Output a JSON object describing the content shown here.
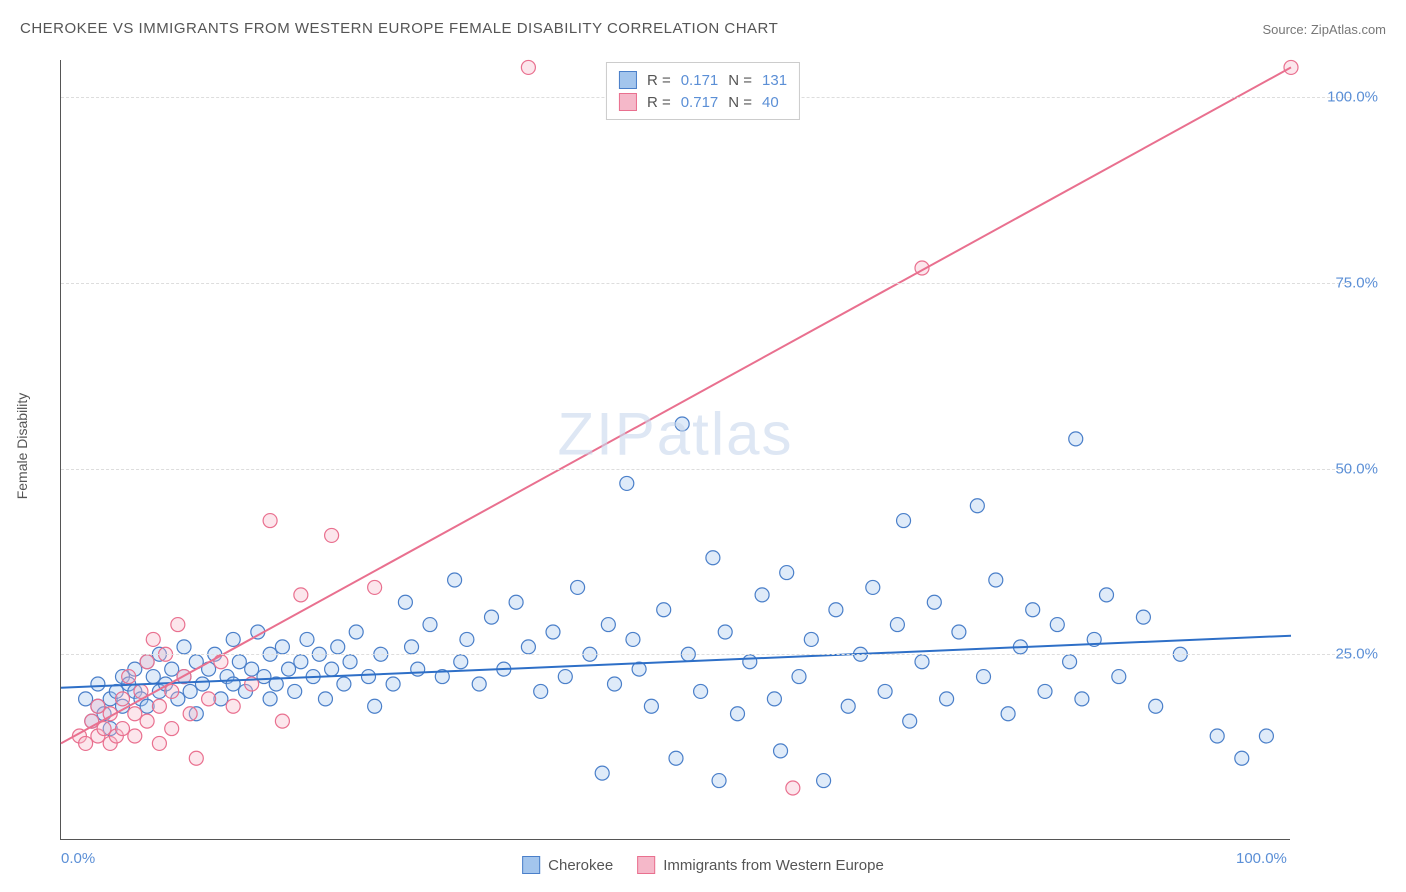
{
  "title": "CHEROKEE VS IMMIGRANTS FROM WESTERN EUROPE FEMALE DISABILITY CORRELATION CHART",
  "source": "Source: ZipAtlas.com",
  "y_axis_label": "Female Disability",
  "watermark": "ZIPatlas",
  "chart": {
    "type": "scatter",
    "background_color": "#ffffff",
    "grid_color": "#dddddd",
    "grid_dash": "4,4",
    "axis_color": "#555555",
    "xlim": [
      0,
      100
    ],
    "ylim": [
      0,
      105
    ],
    "x_ticks": [
      0,
      100
    ],
    "x_tick_labels": [
      "0.0%",
      "100.0%"
    ],
    "y_ticks": [
      25,
      50,
      75,
      100
    ],
    "y_tick_labels": [
      "25.0%",
      "50.0%",
      "75.0%",
      "100.0%"
    ],
    "tick_label_color": "#5b8fd6",
    "tick_label_fontsize": 15,
    "marker_radius": 7,
    "marker_fill_opacity": 0.35,
    "marker_stroke_width": 1.2,
    "line_width": 2
  },
  "series": [
    {
      "name": "Cherokee",
      "fill_color": "#a3c5ed",
      "stroke_color": "#4a7fc9",
      "line_color": "#2e6fc7",
      "swatch_fill": "#a3c5ed",
      "swatch_border": "#4a7fc9",
      "r": "0.171",
      "n": "131",
      "trend": {
        "x1": 0,
        "y1": 20.5,
        "x2": 100,
        "y2": 27.5
      },
      "points": [
        [
          2,
          19
        ],
        [
          2.5,
          16
        ],
        [
          3,
          18
        ],
        [
          3,
          21
        ],
        [
          3.5,
          17
        ],
        [
          4,
          19
        ],
        [
          4,
          15
        ],
        [
          4.5,
          20
        ],
        [
          5,
          22
        ],
        [
          5,
          18
        ],
        [
          5.5,
          21
        ],
        [
          6,
          20
        ],
        [
          6,
          23
        ],
        [
          6.5,
          19
        ],
        [
          7,
          24
        ],
        [
          7,
          18
        ],
        [
          7.5,
          22
        ],
        [
          8,
          20
        ],
        [
          8,
          25
        ],
        [
          8.5,
          21
        ],
        [
          9,
          23
        ],
        [
          9.5,
          19
        ],
        [
          10,
          26
        ],
        [
          10,
          22
        ],
        [
          10.5,
          20
        ],
        [
          11,
          24
        ],
        [
          11,
          17
        ],
        [
          11.5,
          21
        ],
        [
          12,
          23
        ],
        [
          12.5,
          25
        ],
        [
          13,
          19
        ],
        [
          13.5,
          22
        ],
        [
          14,
          27
        ],
        [
          14,
          21
        ],
        [
          14.5,
          24
        ],
        [
          15,
          20
        ],
        [
          15.5,
          23
        ],
        [
          16,
          28
        ],
        [
          16.5,
          22
        ],
        [
          17,
          25
        ],
        [
          17,
          19
        ],
        [
          17.5,
          21
        ],
        [
          18,
          26
        ],
        [
          18.5,
          23
        ],
        [
          19,
          20
        ],
        [
          19.5,
          24
        ],
        [
          20,
          27
        ],
        [
          20.5,
          22
        ],
        [
          21,
          25
        ],
        [
          21.5,
          19
        ],
        [
          22,
          23
        ],
        [
          22.5,
          26
        ],
        [
          23,
          21
        ],
        [
          23.5,
          24
        ],
        [
          24,
          28
        ],
        [
          25,
          22
        ],
        [
          25.5,
          18
        ],
        [
          26,
          25
        ],
        [
          27,
          21
        ],
        [
          28,
          32
        ],
        [
          28.5,
          26
        ],
        [
          29,
          23
        ],
        [
          30,
          29
        ],
        [
          31,
          22
        ],
        [
          32,
          35
        ],
        [
          32.5,
          24
        ],
        [
          33,
          27
        ],
        [
          34,
          21
        ],
        [
          35,
          30
        ],
        [
          36,
          23
        ],
        [
          37,
          32
        ],
        [
          38,
          26
        ],
        [
          39,
          20
        ],
        [
          40,
          28
        ],
        [
          41,
          22
        ],
        [
          42,
          34
        ],
        [
          43,
          25
        ],
        [
          44,
          9
        ],
        [
          44.5,
          29
        ],
        [
          45,
          21
        ],
        [
          46,
          48
        ],
        [
          46.5,
          27
        ],
        [
          47,
          23
        ],
        [
          48,
          18
        ],
        [
          49,
          31
        ],
        [
          50,
          11
        ],
        [
          50.5,
          56
        ],
        [
          51,
          25
        ],
        [
          52,
          20
        ],
        [
          53,
          38
        ],
        [
          53.5,
          8
        ],
        [
          54,
          28
        ],
        [
          55,
          17
        ],
        [
          56,
          24
        ],
        [
          57,
          33
        ],
        [
          58,
          19
        ],
        [
          58.5,
          12
        ],
        [
          59,
          36
        ],
        [
          60,
          22
        ],
        [
          61,
          27
        ],
        [
          62,
          8
        ],
        [
          63,
          31
        ],
        [
          64,
          18
        ],
        [
          65,
          25
        ],
        [
          66,
          34
        ],
        [
          67,
          20
        ],
        [
          68,
          29
        ],
        [
          68.5,
          43
        ],
        [
          69,
          16
        ],
        [
          70,
          24
        ],
        [
          71,
          32
        ],
        [
          72,
          19
        ],
        [
          73,
          28
        ],
        [
          74.5,
          45
        ],
        [
          75,
          22
        ],
        [
          76,
          35
        ],
        [
          77,
          17
        ],
        [
          78,
          26
        ],
        [
          79,
          31
        ],
        [
          80,
          20
        ],
        [
          81,
          29
        ],
        [
          82,
          24
        ],
        [
          82.5,
          54
        ],
        [
          83,
          19
        ],
        [
          84,
          27
        ],
        [
          85,
          33
        ],
        [
          86,
          22
        ],
        [
          88,
          30
        ],
        [
          89,
          18
        ],
        [
          91,
          25
        ],
        [
          94,
          14
        ],
        [
          96,
          11
        ],
        [
          98,
          14
        ]
      ]
    },
    {
      "name": "Immigrants from Western Europe",
      "fill_color": "#f5b8c9",
      "stroke_color": "#e9708f",
      "line_color": "#e9708f",
      "swatch_fill": "#f5b8c9",
      "swatch_border": "#e9708f",
      "r": "0.717",
      "n": "40",
      "trend": {
        "x1": 0,
        "y1": 13,
        "x2": 100,
        "y2": 104
      },
      "points": [
        [
          1.5,
          14
        ],
        [
          2,
          13
        ],
        [
          2.5,
          16
        ],
        [
          3,
          14
        ],
        [
          3,
          18
        ],
        [
          3.5,
          15
        ],
        [
          4,
          13
        ],
        [
          4,
          17
        ],
        [
          4.5,
          14
        ],
        [
          5,
          19
        ],
        [
          5,
          15
        ],
        [
          5.5,
          22
        ],
        [
          6,
          17
        ],
        [
          6,
          14
        ],
        [
          6.5,
          20
        ],
        [
          7,
          24
        ],
        [
          7,
          16
        ],
        [
          7.5,
          27
        ],
        [
          8,
          18
        ],
        [
          8,
          13
        ],
        [
          8.5,
          25
        ],
        [
          9,
          20
        ],
        [
          9,
          15
        ],
        [
          9.5,
          29
        ],
        [
          10,
          22
        ],
        [
          10.5,
          17
        ],
        [
          11,
          11
        ],
        [
          12,
          19
        ],
        [
          13,
          24
        ],
        [
          14,
          18
        ],
        [
          15.5,
          21
        ],
        [
          17,
          43
        ],
        [
          18,
          16
        ],
        [
          19.5,
          33
        ],
        [
          22,
          41
        ],
        [
          25.5,
          34
        ],
        [
          38,
          104
        ],
        [
          59.5,
          7
        ],
        [
          70,
          77
        ],
        [
          100,
          104
        ]
      ]
    }
  ],
  "legend_top": {
    "r_prefix": "R  = ",
    "n_prefix": "N  = "
  },
  "legend_bottom": {
    "items": [
      "Cherokee",
      "Immigrants from Western Europe"
    ]
  }
}
